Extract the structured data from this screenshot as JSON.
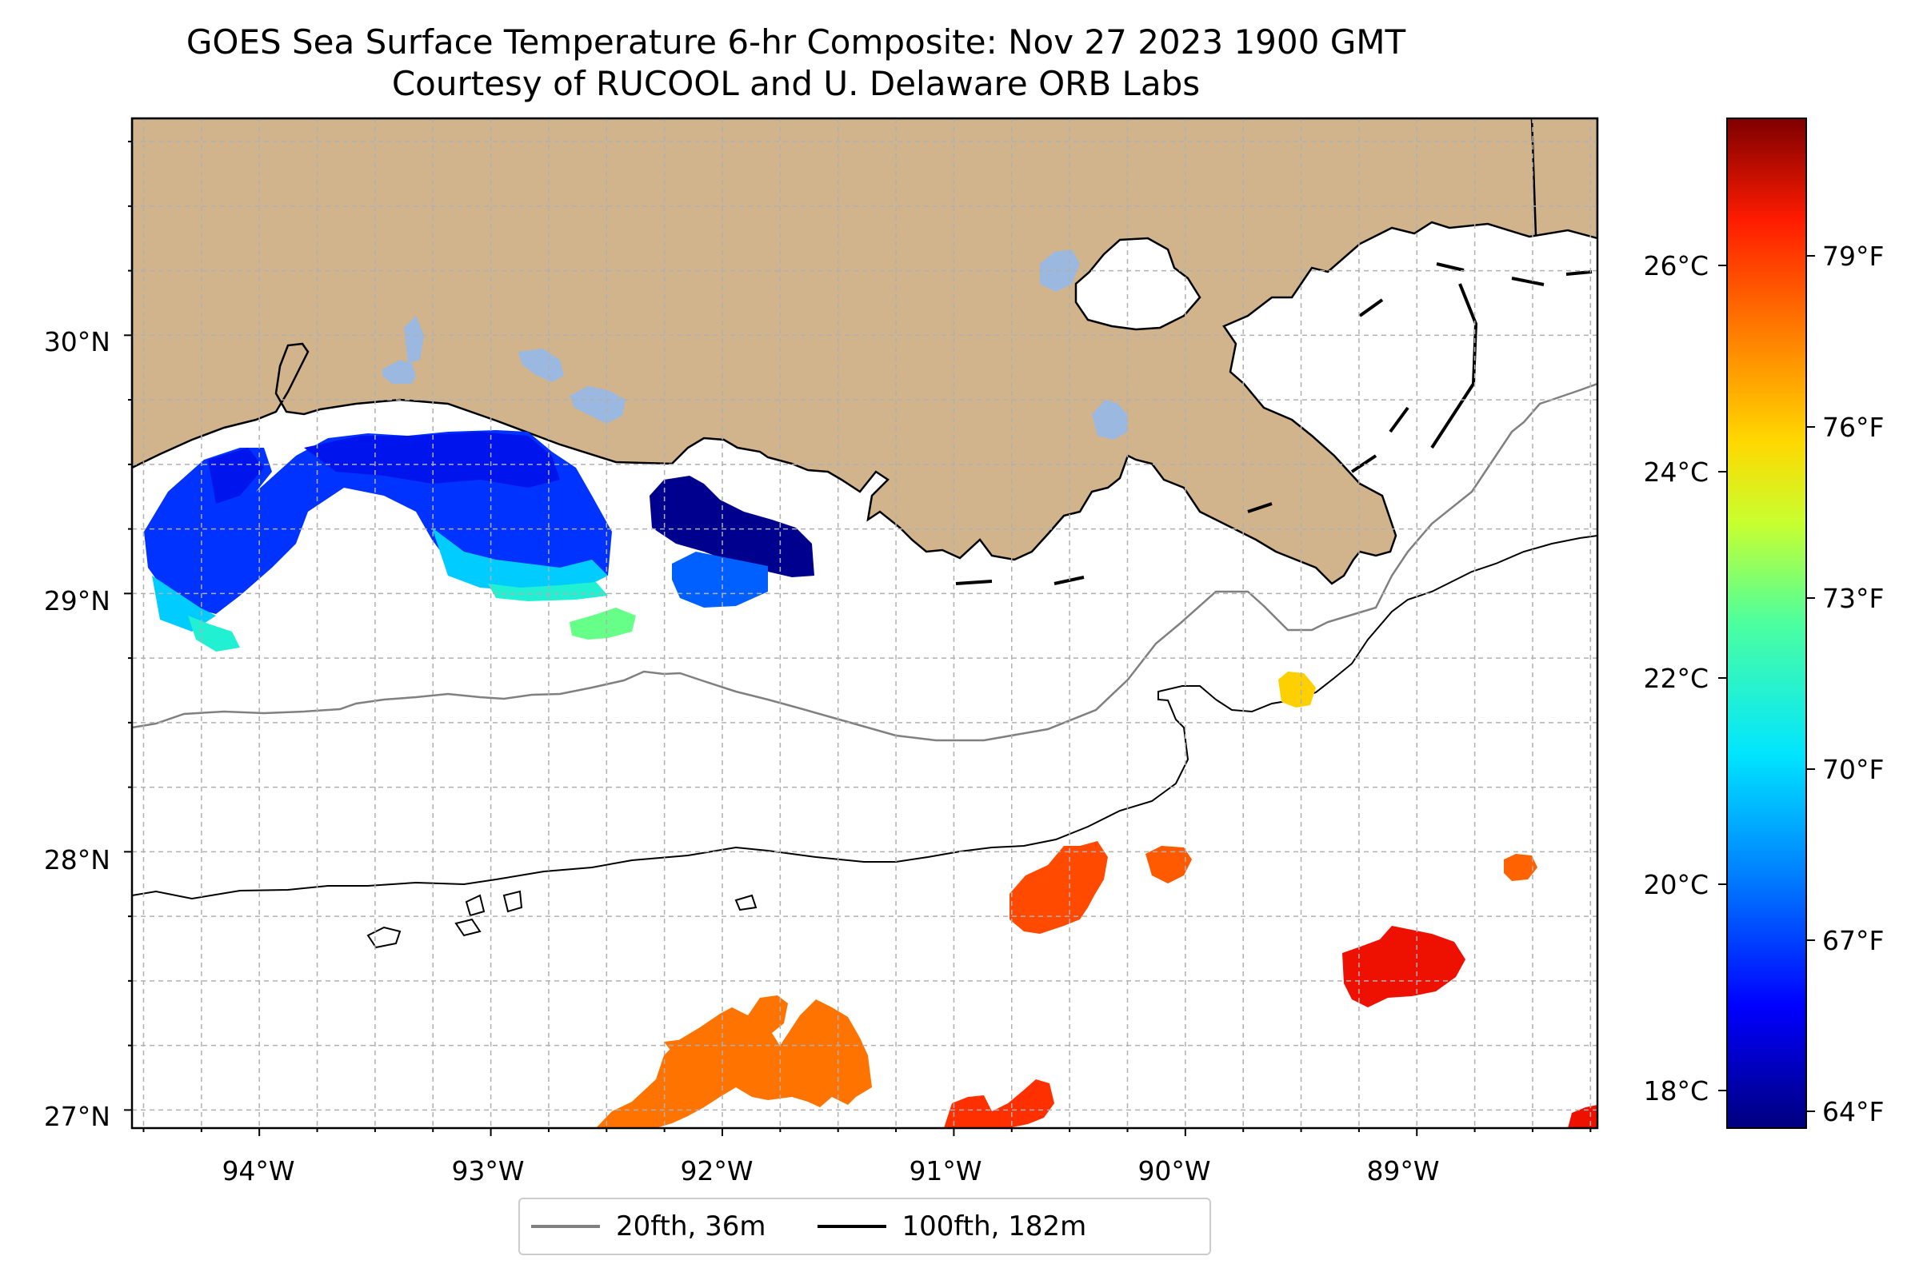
{
  "title": "GOES Sea Surface Temperature 6-hr Composite: Nov 27 2023 1900 GMT",
  "subtitle": "Courtesy of RUCOOL and U. Delaware ORB Labs",
  "map": {
    "lon_range": [
      -94.55,
      -88.22
    ],
    "lat_range": [
      26.93,
      30.84
    ],
    "lon_ticks": [
      "94°W",
      "93°W",
      "92°W",
      "91°W",
      "90°W",
      "89°W"
    ],
    "lat_ticks": [
      "30°N",
      "29°N",
      "28°N",
      "27°N"
    ],
    "grid": true,
    "land_color": "#d2b48c",
    "lake_color": "#9ab8e0"
  },
  "legend": {
    "placement": "bottom-center",
    "items": [
      {
        "label": "20fth, 36m",
        "color": "#808080"
      },
      {
        "label": "100fth, 182m",
        "color": "#000000"
      }
    ]
  },
  "colorbar": {
    "colormap": "jet",
    "celsius_ticks": [
      "26°C",
      "24°C",
      "22°C",
      "20°C",
      "18°C"
    ],
    "fahrenheit_ticks": [
      "79°F",
      "76°F",
      "73°F",
      "70°F",
      "67°F",
      "64°F"
    ]
  }
}
